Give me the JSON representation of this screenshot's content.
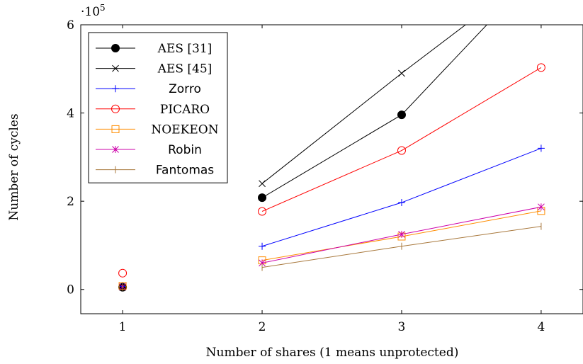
{
  "chart_data": {
    "type": "line",
    "xlabel": "Number of shares (1 means unprotected)",
    "ylabel": "Number of cycles",
    "y_multiplier_label": "·10",
    "y_multiplier_exp": "5",
    "xlim": [
      0.7,
      4.3
    ],
    "ylim": [
      -0.55,
      6
    ],
    "x_ticks": [
      1,
      2,
      3,
      4
    ],
    "y_ticks": [
      0,
      2,
      4,
      6
    ],
    "grid": false,
    "legend_position": "top-left",
    "series": [
      {
        "name": "AES [31]",
        "color": "#000000",
        "marker": "filled-circle",
        "font": "serif",
        "points": [
          [
            1,
            0.05
          ],
          [
            2,
            2.08
          ],
          [
            3,
            3.96
          ],
          [
            4,
            7.3
          ]
        ]
      },
      {
        "name": "AES [45]",
        "color": "#000000",
        "marker": "x",
        "font": "serif",
        "points": [
          [
            1,
            0.05
          ],
          [
            2,
            2.4
          ],
          [
            3,
            4.9
          ],
          [
            4,
            7.3
          ]
        ]
      },
      {
        "name": "Zorro",
        "color": "#0000ff",
        "marker": "plus",
        "font": "sans",
        "points": [
          [
            1,
            0.07
          ],
          [
            2,
            0.98
          ],
          [
            3,
            1.97
          ],
          [
            4,
            3.2
          ]
        ]
      },
      {
        "name": "PICARO",
        "color": "#ff0000",
        "marker": "circle",
        "font": "serif",
        "points": [
          [
            1,
            0.37
          ],
          [
            2,
            1.77
          ],
          [
            3,
            3.15
          ],
          [
            4,
            5.03
          ]
        ]
      },
      {
        "name": "NOEKEON",
        "color": "#ff8c00",
        "marker": "square",
        "font": "serif",
        "points": [
          [
            1,
            0.08
          ],
          [
            2,
            0.66
          ],
          [
            3,
            1.2
          ],
          [
            4,
            1.78
          ]
        ]
      },
      {
        "name": "Robin",
        "color": "#cc00aa",
        "marker": "star",
        "font": "sans",
        "points": [
          [
            1,
            0.06
          ],
          [
            2,
            0.6
          ],
          [
            3,
            1.25
          ],
          [
            4,
            1.87
          ]
        ]
      },
      {
        "name": "Fantomas",
        "color": "#a8783c",
        "marker": "vbar",
        "font": "sans",
        "points": [
          [
            1,
            0.05
          ],
          [
            2,
            0.5
          ],
          [
            3,
            0.98
          ],
          [
            4,
            1.43
          ]
        ]
      }
    ]
  }
}
